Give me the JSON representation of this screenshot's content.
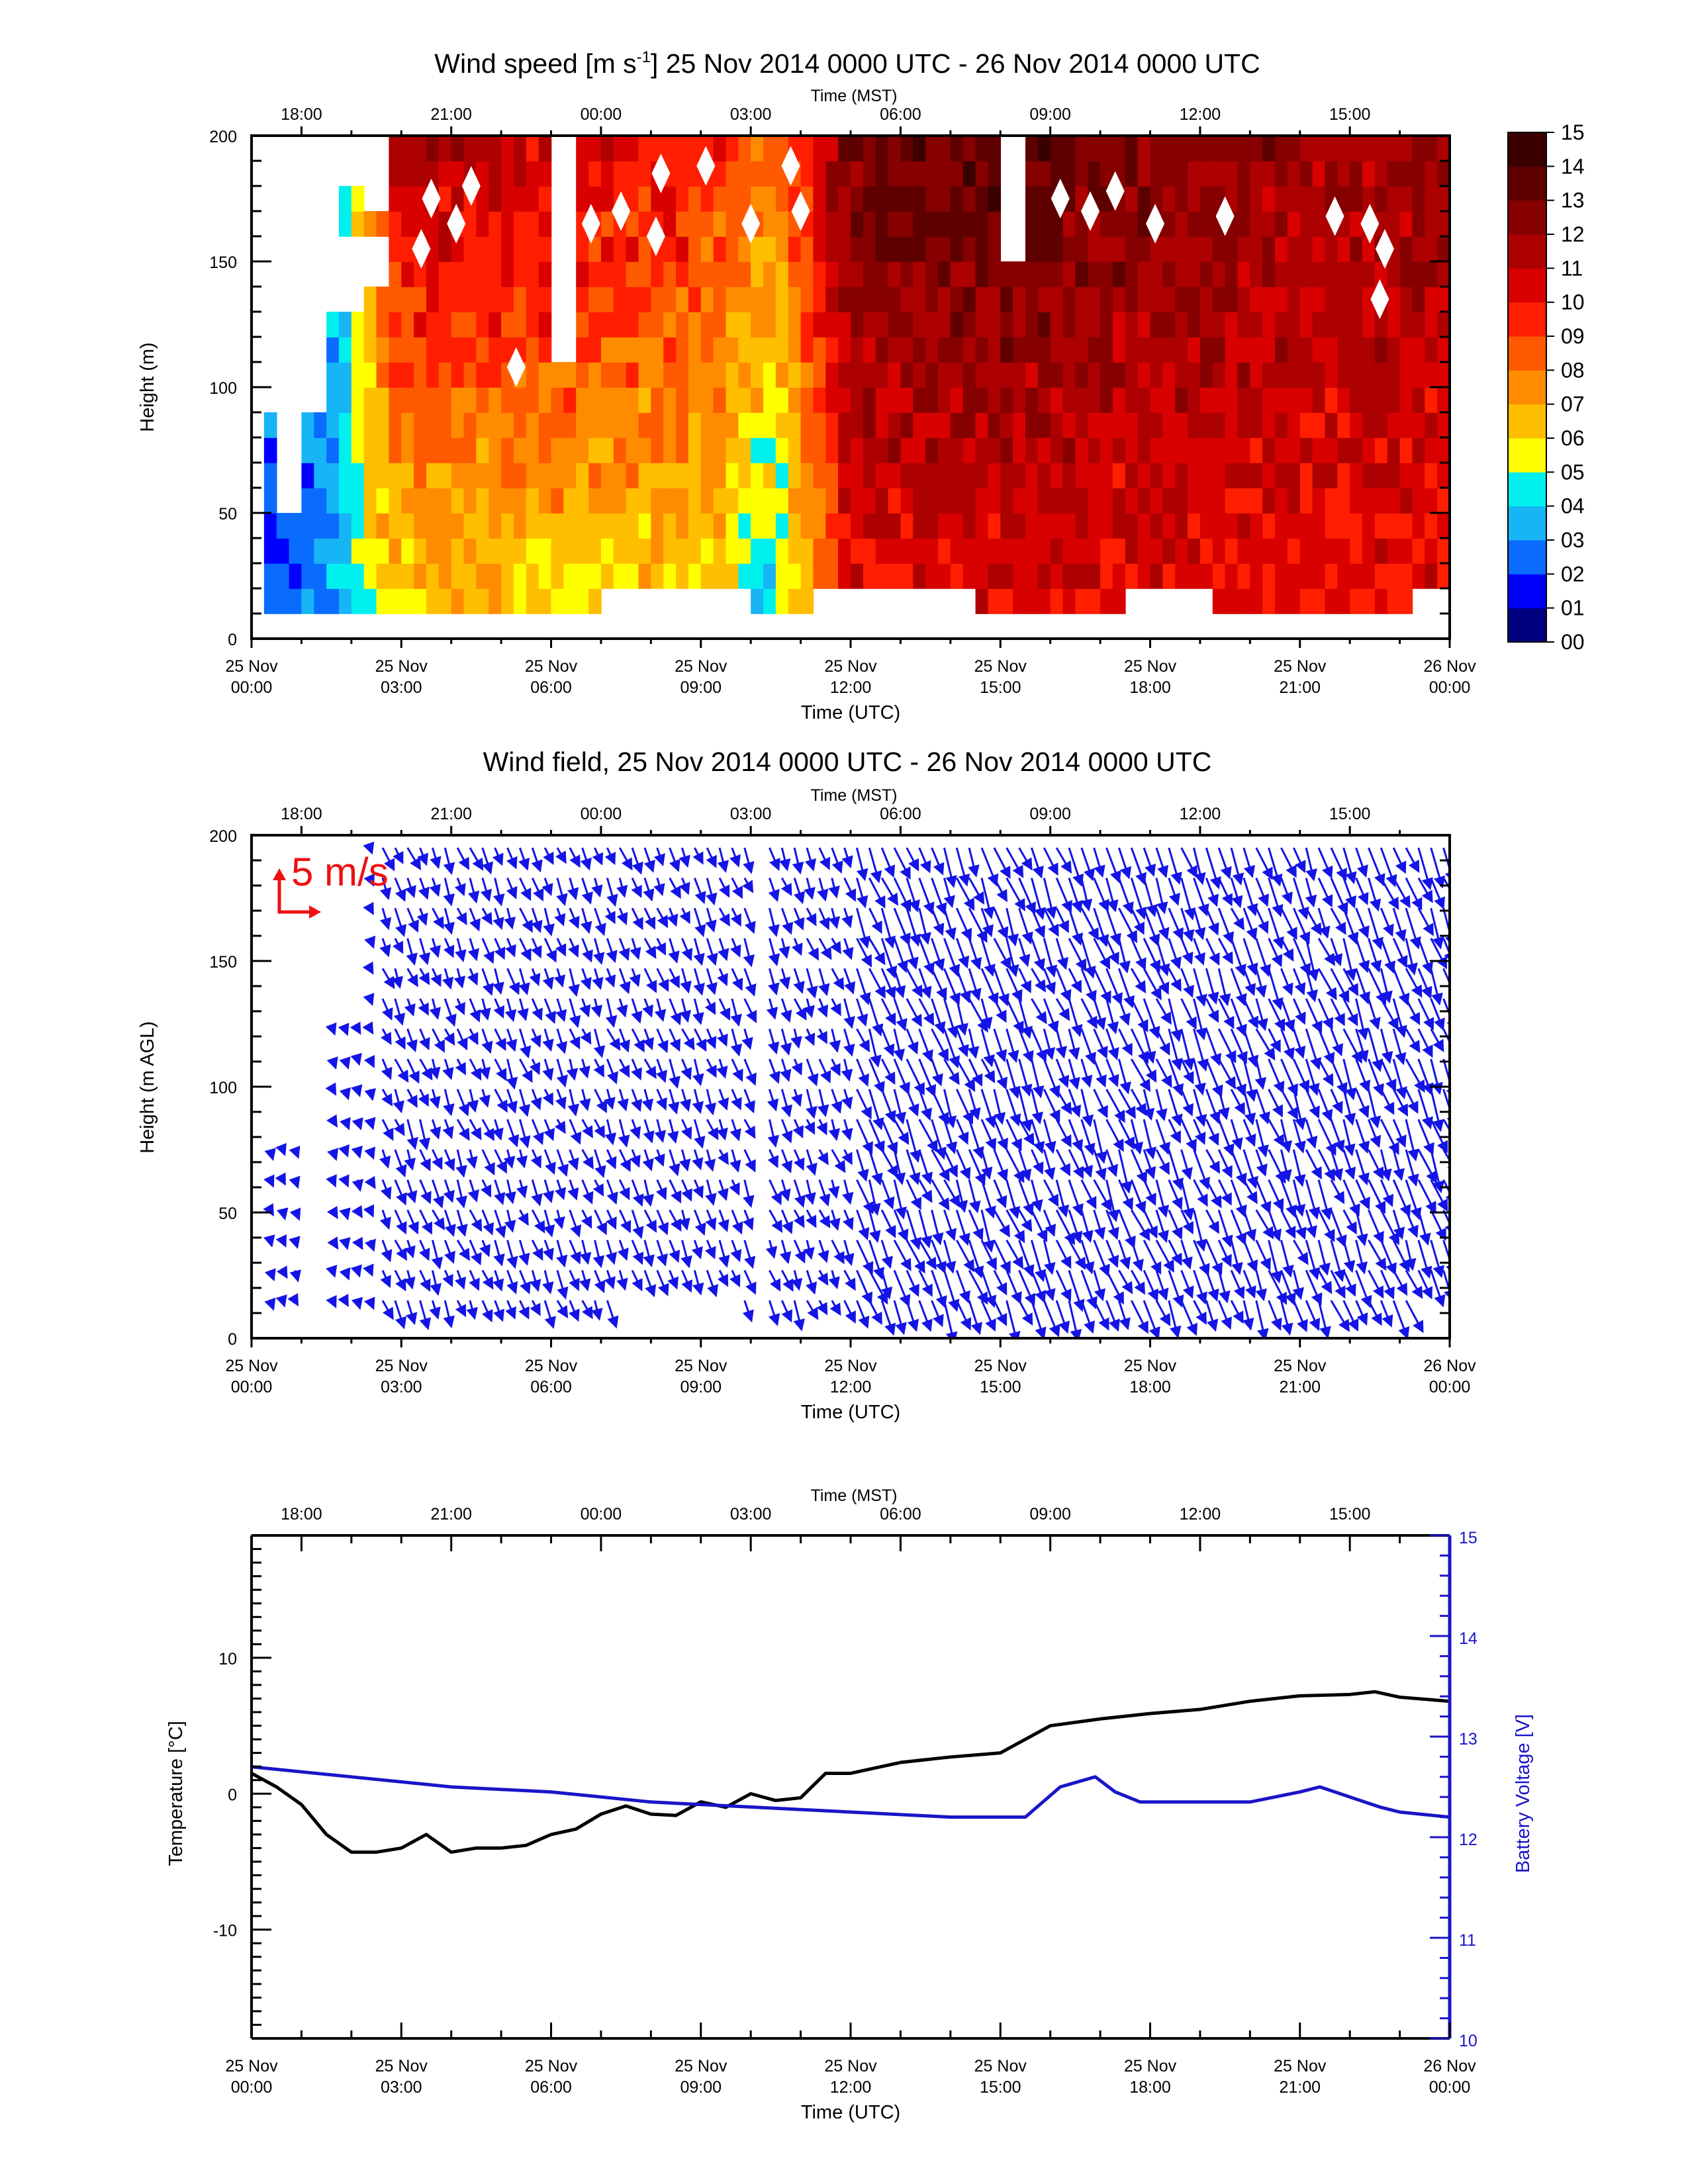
{
  "colors": {
    "frame": "#000000",
    "wind_arrow": "#1414e6",
    "scale_arrow": "#ee1111",
    "temperature_line": "#000000",
    "battery_line": "#1a14c8",
    "colorbar": [
      "#000080",
      "#0000ff",
      "#0a6cff",
      "#17b4f6",
      "#00f0f0",
      "#ffff00",
      "#ffbe00",
      "#ff8c00",
      "#ff5a00",
      "#ff1e00",
      "#d90000",
      "#ad0000",
      "#860000",
      "#5e0000",
      "#3a0000"
    ]
  },
  "utc_ticks": [
    [
      "25 Nov",
      "00:00"
    ],
    [
      "25 Nov",
      "03:00"
    ],
    [
      "25 Nov",
      "06:00"
    ],
    [
      "25 Nov",
      "09:00"
    ],
    [
      "25 Nov",
      "12:00"
    ],
    [
      "25 Nov",
      "15:00"
    ],
    [
      "25 Nov",
      "18:00"
    ],
    [
      "25 Nov",
      "21:00"
    ],
    [
      "26 Nov",
      "00:00"
    ]
  ],
  "mst_ticks": [
    "18:00",
    "21:00",
    "00:00",
    "03:00",
    "06:00",
    "09:00",
    "12:00",
    "15:00"
  ],
  "panel_speed": {
    "title": "Wind speed [m s",
    "title_sup": "-1",
    "title_rest": "] 25 Nov 2014 0000 UTC - 26 Nov 2014 0000 UTC",
    "top_label": "Time (MST)",
    "xlabel": "Time (UTC)",
    "ylabel": "Height (m)",
    "yticks": [
      "0",
      "50",
      "100",
      "150",
      "200"
    ],
    "colorbar_labels": [
      "00",
      "01",
      "02",
      "03",
      "04",
      "05",
      "06",
      "07",
      "08",
      "09",
      "10",
      "11",
      "12",
      "13",
      "14",
      "15"
    ]
  },
  "panel_wind": {
    "title": "Wind field, 25 Nov 2014 0000 UTC - 26 Nov 2014 0000 UTC",
    "top_label": "Time (MST)",
    "xlabel": "Time (UTC)",
    "ylabel": "Height (m AGL)",
    "yticks": [
      "0",
      "50",
      "100",
      "150",
      "200"
    ],
    "scale_label": "5 m/s"
  },
  "panel_temp": {
    "top_label": "Time (MST)",
    "xlabel": "Time (UTC)",
    "ylabel_left": "Temperature [°C]",
    "ylabel_right": "Battery Voltage [V]",
    "yticks_left": [
      "-10",
      "0",
      "10"
    ],
    "yticks_right": [
      "10",
      "11",
      "12",
      "13",
      "14",
      "15"
    ]
  },
  "chart_data": [
    {
      "type": "heatmap",
      "title": "Wind speed [m s-1] 25 Nov 2014 0000 UTC - 26 Nov 2014 0000 UTC",
      "xlabel": "Time (UTC)",
      "ylabel": "Height (m)",
      "xlim_hours_utc": [
        0,
        24
      ],
      "ylim": [
        0,
        200
      ],
      "colorbar_range": [
        0,
        15
      ],
      "heights_m": [
        10,
        20,
        30,
        40,
        50,
        60,
        80,
        100,
        120,
        140,
        160,
        180,
        200
      ],
      "approx_speed_by_hour": [
        {
          "hour": 0,
          "low_levels": 2,
          "upper_levels": null
        },
        {
          "hour": 1.5,
          "low_levels": 3,
          "upper_levels": 3
        },
        {
          "hour": 3,
          "low_levels": 6,
          "upper_levels": 12
        },
        {
          "hour": 6,
          "low_levels": 6,
          "upper_levels": 11
        },
        {
          "hour": 9,
          "low_levels": 6,
          "upper_levels": 10
        },
        {
          "hour": 10.5,
          "low_levels": 4,
          "upper_levels": 8
        },
        {
          "hour": 12,
          "low_levels": 10,
          "upper_levels": 13
        },
        {
          "hour": 15,
          "low_levels": 10,
          "upper_levels": 14
        },
        {
          "hour": 18,
          "low_levels": 10,
          "upper_levels": 13
        },
        {
          "hour": 21,
          "low_levels": 10,
          "upper_levels": 12
        },
        {
          "hour": 24,
          "low_levels": 10,
          "upper_levels": 12
        }
      ]
    },
    {
      "type": "scatter",
      "subtype": "wind vector field",
      "title": "Wind field, 25 Nov 2014 0000 UTC - 26 Nov 2014 0000 UTC",
      "xlabel": "Time (UTC)",
      "ylabel": "Height (m AGL)",
      "xlim_hours_utc": [
        0,
        24
      ],
      "ylim": [
        0,
        200
      ],
      "reference_vector": "5 m/s",
      "dominant_direction": "arrows pointing toward lower-right (northwesterly flow), strengthening after 12:00 UTC"
    },
    {
      "type": "line",
      "xlabel": "Time (UTC)",
      "xlim_hours_utc": [
        0,
        24
      ],
      "series": [
        {
          "name": "Temperature [°C]",
          "axis": "left",
          "ylim": [
            -18,
            19
          ],
          "x": [
            0,
            0.5,
            1,
            1.5,
            2,
            2.5,
            3,
            3.5,
            4,
            4.5,
            5,
            5.5,
            6,
            6.5,
            7,
            7.5,
            8,
            8.5,
            9,
            9.5,
            10,
            10.5,
            11,
            11.5,
            12,
            13,
            14,
            15,
            16,
            17,
            18,
            19,
            20,
            21,
            22,
            22.5,
            23,
            24
          ],
          "values": [
            1.5,
            0.5,
            -0.8,
            -3.0,
            -4.3,
            -4.3,
            -4.0,
            -3.0,
            -4.3,
            -4.0,
            -4.0,
            -3.8,
            -3.0,
            -2.6,
            -1.5,
            -0.9,
            -1.5,
            -1.6,
            -0.6,
            -1.0,
            0.0,
            -0.5,
            -0.3,
            1.5,
            1.5,
            2.3,
            2.7,
            3.0,
            5.0,
            5.5,
            5.9,
            6.2,
            6.8,
            7.2,
            7.3,
            7.5,
            7.1,
            6.8
          ]
        },
        {
          "name": "Battery Voltage [V]",
          "axis": "right",
          "ylim": [
            10,
            15
          ],
          "x": [
            0,
            2,
            4,
            6,
            8,
            10,
            12,
            14,
            15.5,
            16.2,
            16.9,
            17.3,
            17.8,
            18.5,
            19.5,
            20,
            21,
            21.4,
            22,
            22.6,
            23,
            24
          ],
          "values": [
            12.7,
            12.6,
            12.5,
            12.45,
            12.35,
            12.3,
            12.25,
            12.2,
            12.2,
            12.5,
            12.6,
            12.45,
            12.35,
            12.35,
            12.35,
            12.35,
            12.45,
            12.5,
            12.4,
            12.3,
            12.25,
            12.2
          ]
        }
      ]
    }
  ]
}
